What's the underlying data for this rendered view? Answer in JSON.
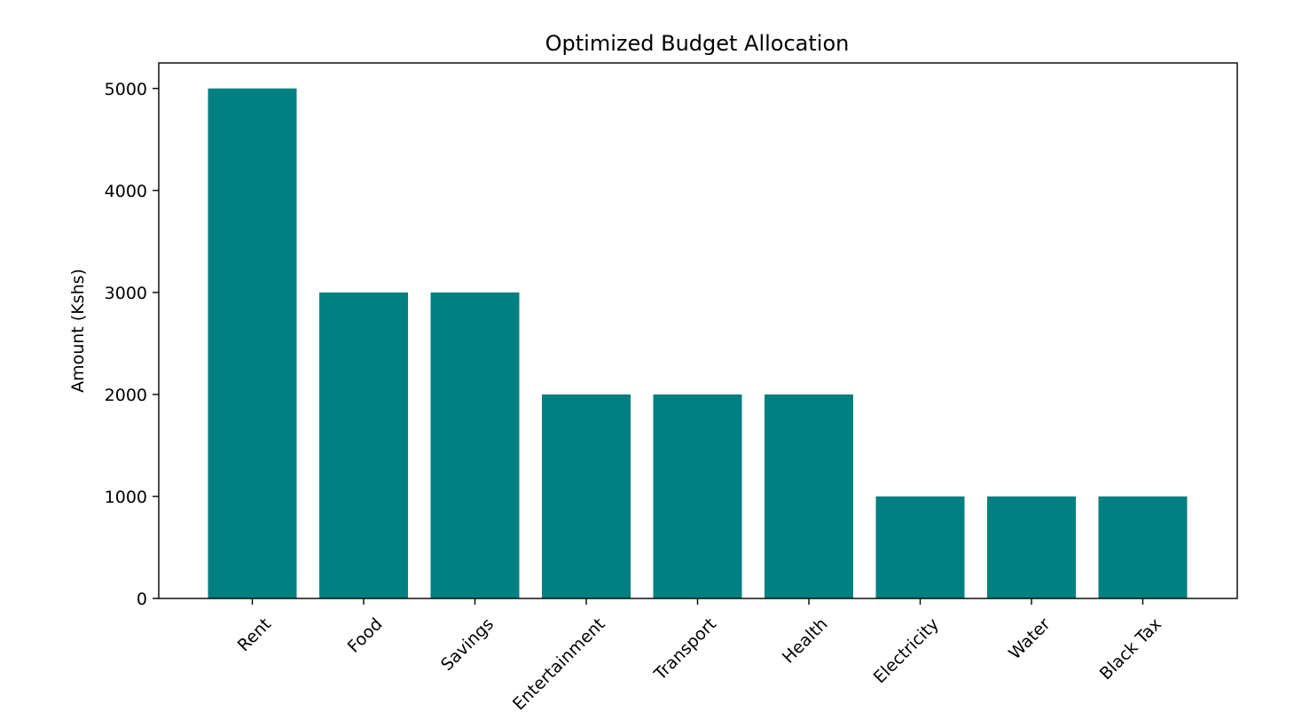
{
  "chart_data": {
    "type": "bar",
    "title": "Optimized Budget Allocation",
    "xlabel": "",
    "ylabel": "Amount (Kshs)",
    "categories": [
      "Rent",
      "Food",
      "Savings",
      "Entertainment",
      "Transport",
      "Health",
      "Electricity",
      "Water",
      "Black Tax"
    ],
    "values": [
      5000,
      3000,
      3000,
      2000,
      2000,
      2000,
      1000,
      1000,
      1000
    ],
    "ylim": [
      0,
      5250
    ],
    "yticks": [
      0,
      1000,
      2000,
      3000,
      4000,
      5000
    ],
    "bar_color": "#008080",
    "grid": false,
    "legend": "none"
  }
}
